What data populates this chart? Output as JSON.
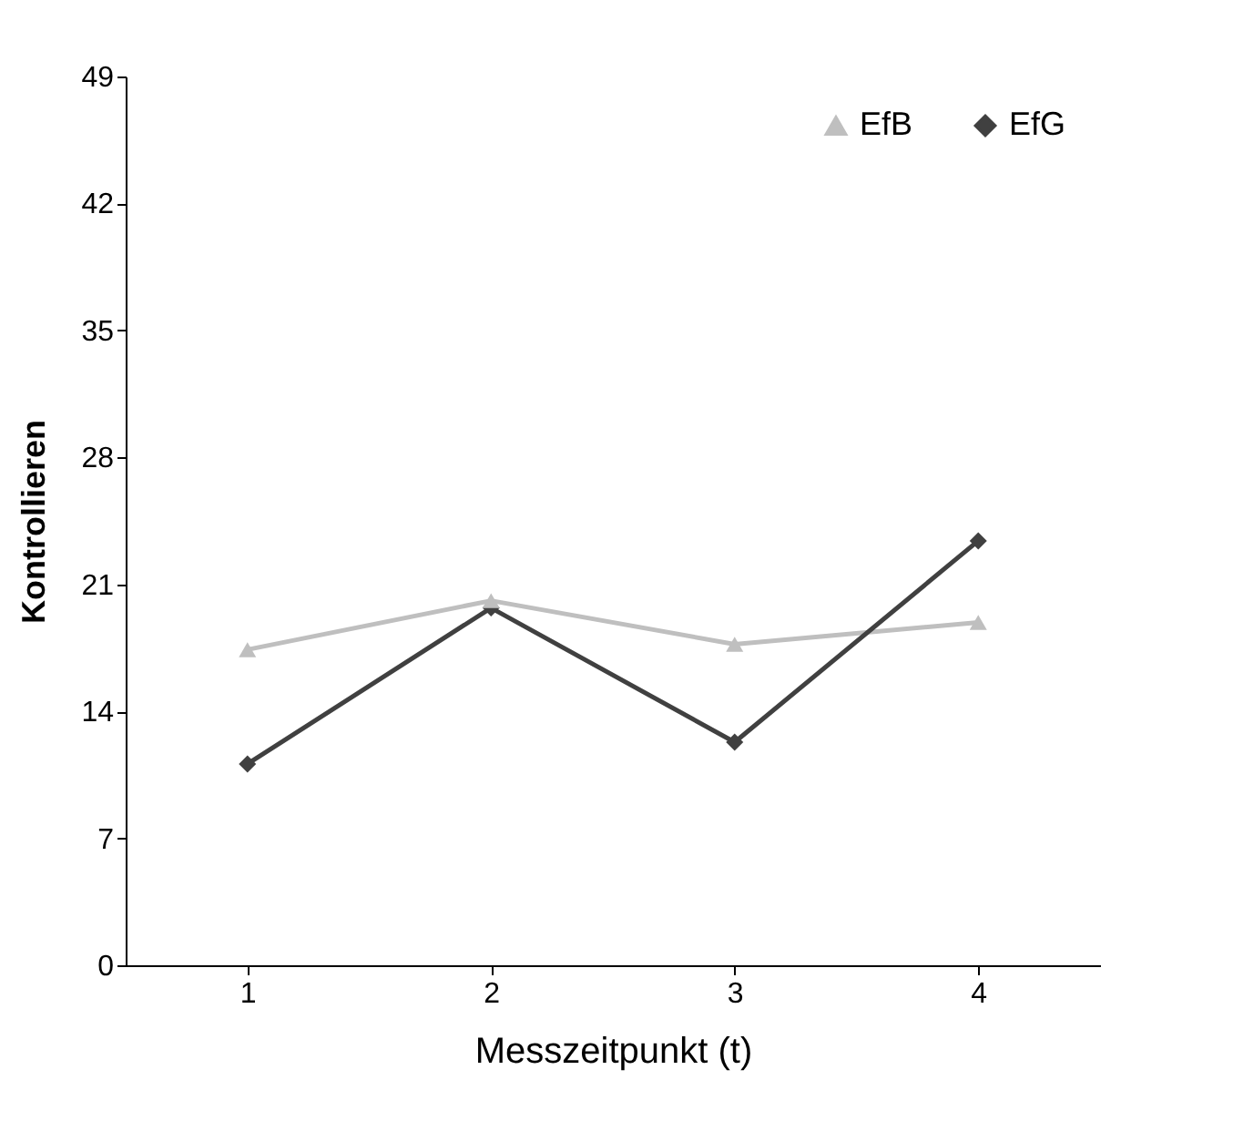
{
  "chart_data": {
    "type": "line",
    "xlabel": "Messzeitpunkt (t)",
    "ylabel": "Kontrollieren",
    "categories": [
      "1",
      "2",
      "3",
      "4"
    ],
    "series": [
      {
        "name": "EfB",
        "color": "#bfbfbf",
        "marker": "triangle",
        "values": [
          17.4,
          20.1,
          17.7,
          18.9
        ]
      },
      {
        "name": "EfG",
        "color": "#404040",
        "marker": "diamond",
        "values": [
          11.1,
          19.7,
          12.3,
          23.4
        ]
      }
    ],
    "ylim": [
      0,
      49
    ],
    "yticks": [
      0,
      7,
      14,
      21,
      28,
      35,
      42,
      49
    ],
    "grid": false,
    "legend": "top right",
    "line_style": "solid"
  }
}
